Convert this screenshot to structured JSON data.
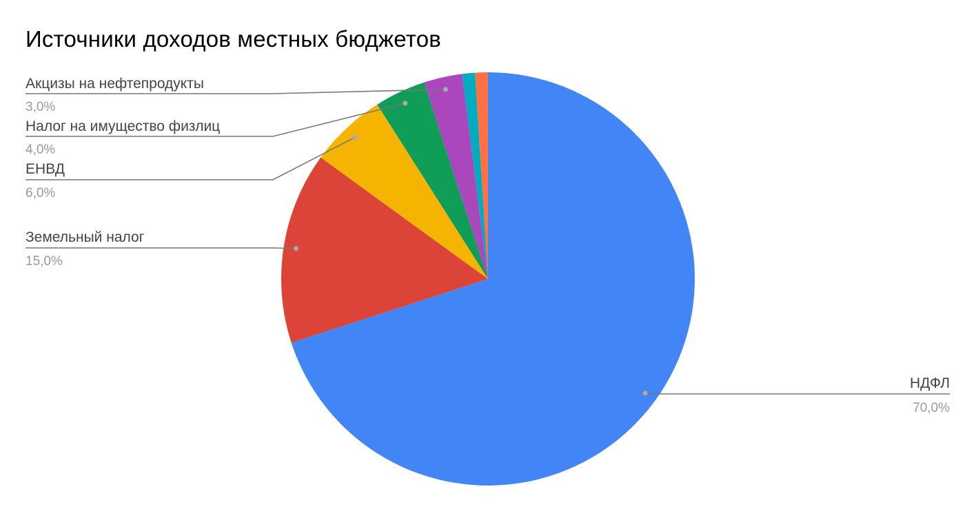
{
  "chart_data": {
    "type": "pie",
    "title": "Источники доходов местных бюджетов",
    "start_angle_deg": 0,
    "direction": "clockwise",
    "slices": [
      {
        "label": "НДФЛ",
        "value": 70.0,
        "value_label": "70,0%",
        "color": "#4285f4",
        "show_label": true
      },
      {
        "label": "Земельный налог",
        "value": 15.0,
        "value_label": "15,0%",
        "color": "#db4437",
        "show_label": true
      },
      {
        "label": "ЕНВД",
        "value": 6.0,
        "value_label": "6,0%",
        "color": "#f4b400",
        "show_label": true
      },
      {
        "label": "Налог на имущество физлиц",
        "value": 4.0,
        "value_label": "4,0%",
        "color": "#0f9d58",
        "show_label": true
      },
      {
        "label": "Акцизы на нефтепродукты",
        "value": 3.0,
        "value_label": "3,0%",
        "color": "#ab47bc",
        "show_label": true
      },
      {
        "label": "",
        "value": 1.0,
        "value_label": "",
        "color": "#00acc1",
        "show_label": false
      },
      {
        "label": "",
        "value": 1.0,
        "value_label": "",
        "color": "#ff7043",
        "show_label": false
      }
    ]
  }
}
